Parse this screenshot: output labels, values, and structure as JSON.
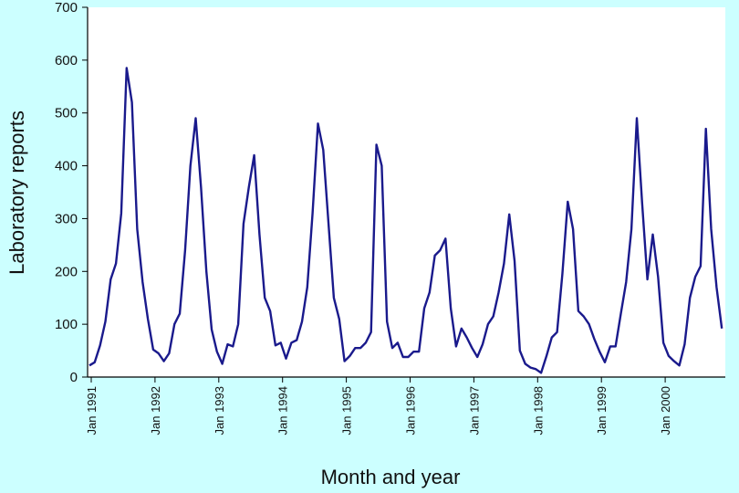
{
  "chart_data": {
    "type": "line",
    "title": "",
    "xlabel": "Month and year",
    "ylabel": "Laboratory reports",
    "ylim": [
      0,
      700
    ],
    "yticks": [
      0,
      100,
      200,
      300,
      400,
      500,
      600,
      700
    ],
    "grid": false,
    "background_color": "#ccffff",
    "plot_background_color": "#ffffff",
    "line_color": "#1a1a8c",
    "x_start": "Jan 1991",
    "x_end": "Dec 2000",
    "xticks": [
      {
        "label": "Jan 1991",
        "month_index": 0
      },
      {
        "label": "Jan 1992",
        "month_index": 12
      },
      {
        "label": "Jan 1993",
        "month_index": 24
      },
      {
        "label": "Jan 1994",
        "month_index": 36
      },
      {
        "label": "Jan 1995",
        "month_index": 48
      },
      {
        "label": "Jan 1996",
        "month_index": 60
      },
      {
        "label": "Jan 1997",
        "month_index": 72
      },
      {
        "label": "Jan 1998",
        "month_index": 84
      },
      {
        "label": "Jan 1999",
        "month_index": 96
      },
      {
        "label": "Jan 2000",
        "month_index": 108
      }
    ],
    "series": [
      {
        "name": "Laboratory reports",
        "values": [
          22,
          28,
          60,
          105,
          185,
          215,
          310,
          585,
          520,
          280,
          180,
          110,
          52,
          45,
          30,
          45,
          100,
          120,
          240,
          400,
          490,
          360,
          200,
          90,
          48,
          25,
          62,
          58,
          100,
          290,
          360,
          420,
          270,
          150,
          125,
          60,
          65,
          35,
          65,
          70,
          105,
          170,
          310,
          480,
          430,
          290,
          150,
          110,
          30,
          40,
          55,
          55,
          65,
          85,
          440,
          400,
          105,
          55,
          65,
          38,
          38,
          48,
          48,
          130,
          160,
          230,
          240,
          262,
          130,
          58,
          92,
          75,
          55,
          38,
          62,
          100,
          115,
          160,
          215,
          308,
          220,
          50,
          25,
          18,
          15,
          8,
          40,
          75,
          85,
          195,
          332,
          280,
          125,
          115,
          100,
          72,
          48,
          28,
          58,
          58,
          120,
          180,
          280,
          490,
          330,
          185,
          270,
          190,
          65,
          40,
          30,
          22,
          62,
          150,
          190,
          210,
          470,
          280,
          170,
          92
        ]
      }
    ]
  }
}
